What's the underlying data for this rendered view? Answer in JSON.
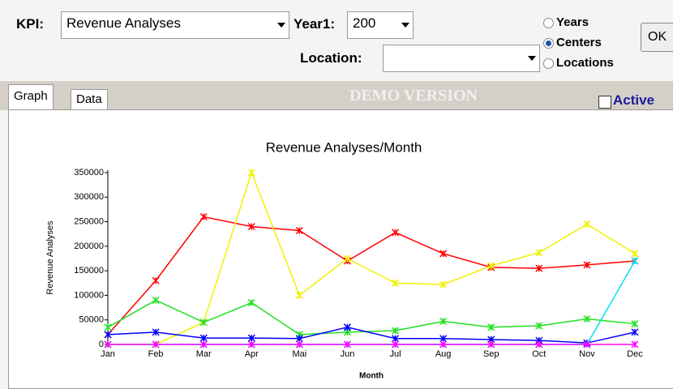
{
  "ui": {
    "kpi_label": "KPI:",
    "kpi_value": "Revenue Analyses",
    "year_label": "Year1:",
    "year_value": "200",
    "location_label": "Location:",
    "radios": [
      "Years",
      "Centers",
      "Locations"
    ],
    "selected_radio": 1,
    "ok": "OK",
    "tabs": [
      "Graph",
      "Data"
    ],
    "demo": "DEMO VERSION",
    "active": "Active"
  },
  "chart_data": {
    "type": "line",
    "title": "Revenue Analyses/Month",
    "x_label": "Month",
    "y_label": "Revenue Analyses",
    "categories": [
      "Jan",
      "Feb",
      "Mar",
      "Apr",
      "Mai",
      "Jun",
      "Jul",
      "Aug",
      "Sep",
      "Oct",
      "Nov",
      "Dec"
    ],
    "ylim": [
      0,
      350000
    ],
    "yticks": [
      0,
      50000,
      100000,
      150000,
      200000,
      250000,
      300000,
      350000
    ],
    "series": [
      {
        "color": "#ff0000",
        "values": [
          20000,
          130000,
          260000,
          240000,
          232000,
          170000,
          228000,
          185000,
          157000,
          155000,
          162000,
          170000
        ]
      },
      {
        "color": "#f0f000",
        "values": [
          0,
          0,
          45000,
          350000,
          100000,
          175000,
          125000,
          122000,
          160000,
          187000,
          245000,
          185000
        ]
      },
      {
        "color": "#22e022",
        "values": [
          35000,
          90000,
          45000,
          85000,
          20000,
          25000,
          28000,
          47000,
          35000,
          38000,
          52000,
          42000
        ]
      },
      {
        "color": "#0000ff",
        "values": [
          20000,
          25000,
          13000,
          13000,
          12000,
          35000,
          12000,
          12000,
          10000,
          8000,
          3000,
          25000
        ]
      },
      {
        "color": "#00e0f0",
        "values": [
          0,
          0,
          0,
          0,
          0,
          0,
          0,
          0,
          0,
          0,
          0,
          170000
        ]
      },
      {
        "color": "#ff00ff",
        "values": [
          0,
          0,
          0,
          0,
          0,
          0,
          0,
          0,
          0,
          0,
          0,
          0
        ]
      }
    ]
  }
}
